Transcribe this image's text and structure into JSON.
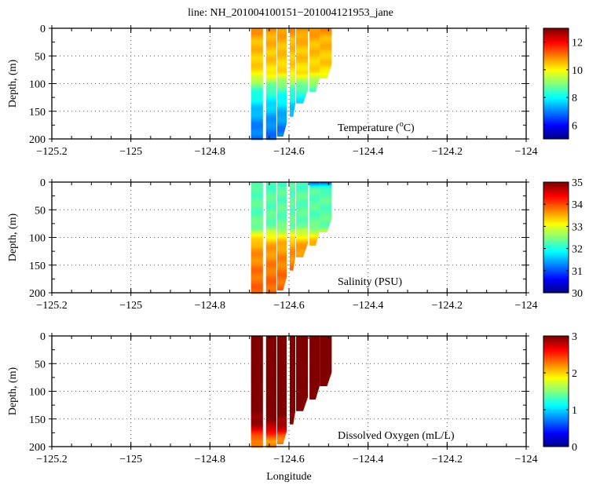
{
  "title": "line: NH_201004100151−201004121953_jane",
  "xlabel": "Longitude",
  "chart_data": [
    {
      "type": "heatmap",
      "variable": "temperature",
      "label": "Temperature (",
      "label_sup": "o",
      "label_end": "C)",
      "ylabel": "Depth, (m)",
      "xlim": [
        -125.2,
        -124.0
      ],
      "ylim": [
        0,
        200
      ],
      "xticks": [
        -125.2,
        -125,
        -124.8,
        -124.6,
        -124.4,
        -124.2,
        -124
      ],
      "yticks": [
        0,
        50,
        100,
        150,
        200
      ],
      "clim": [
        5,
        13
      ],
      "cticks": [
        6,
        8,
        10,
        12
      ],
      "depths": [
        0,
        20,
        40,
        60,
        80,
        90,
        100,
        110,
        120,
        140,
        160,
        180,
        200
      ],
      "values": [
        10.9,
        10.6,
        10.5,
        10.4,
        10.2,
        9.6,
        9.1,
        8.6,
        8.2,
        7.7,
        7.3,
        7.0,
        6.9
      ]
    },
    {
      "type": "heatmap",
      "variable": "salinity",
      "label": "Salinity (PSU)",
      "ylabel": "Depth, (m)",
      "xlim": [
        -125.2,
        -124.0
      ],
      "ylim": [
        0,
        200
      ],
      "xticks": [
        -125.2,
        -125,
        -124.8,
        -124.6,
        -124.4,
        -124.2,
        -124
      ],
      "yticks": [
        0,
        50,
        100,
        150,
        200
      ],
      "clim": [
        30,
        35
      ],
      "cticks": [
        30,
        31,
        32,
        33,
        34,
        35
      ],
      "depths": [
        0,
        20,
        40,
        60,
        80,
        90,
        100,
        110,
        120,
        140,
        160,
        180,
        200
      ],
      "values": [
        32.2,
        32.3,
        32.3,
        32.3,
        32.4,
        32.8,
        33.2,
        33.5,
        33.6,
        33.7,
        33.8,
        33.85,
        33.9
      ],
      "surface_fresh": {
        "lon_from": -124.56,
        "lon_to": -124.49,
        "depth_to": 10,
        "value": 31.2
      }
    },
    {
      "type": "heatmap",
      "variable": "dissolved_oxygen",
      "label": "Dissolved Oxygen (mL/L)",
      "ylabel": "Depth, (m)",
      "xlim": [
        -125.2,
        -124.0
      ],
      "ylim": [
        0,
        200
      ],
      "xticks": [
        -125.2,
        -125,
        -124.8,
        -124.6,
        -124.4,
        -124.2,
        -124
      ],
      "yticks": [
        0,
        50,
        100,
        150,
        200
      ],
      "clim": [
        0,
        3
      ],
      "cticks": [
        0,
        1,
        2,
        3
      ],
      "depths": [
        0,
        20,
        40,
        60,
        80,
        100,
        120,
        140,
        160,
        170,
        180,
        190,
        200
      ],
      "values": [
        3.4,
        3.4,
        3.4,
        3.4,
        3.3,
        3.2,
        3.1,
        3.0,
        2.9,
        2.7,
        2.4,
        2.2,
        2.3
      ]
    }
  ],
  "profiles": [
    {
      "lon_start": -124.696,
      "lon_end": -124.666,
      "max_depth": 199
    },
    {
      "lon_start": -124.658,
      "lon_end": -124.632,
      "max_depth": 199
    },
    {
      "lon_start": -124.63,
      "lon_end": -124.606,
      "max_depth": 195
    },
    {
      "lon_start": -124.598,
      "lon_end": -124.584,
      "max_depth": 159
    },
    {
      "lon_start": -124.582,
      "lon_end": -124.552,
      "max_depth": 133
    },
    {
      "lon_start": -124.548,
      "lon_end": -124.522,
      "max_depth": 112
    },
    {
      "lon_start": -124.522,
      "lon_end": -124.492,
      "max_depth": 89
    }
  ]
}
